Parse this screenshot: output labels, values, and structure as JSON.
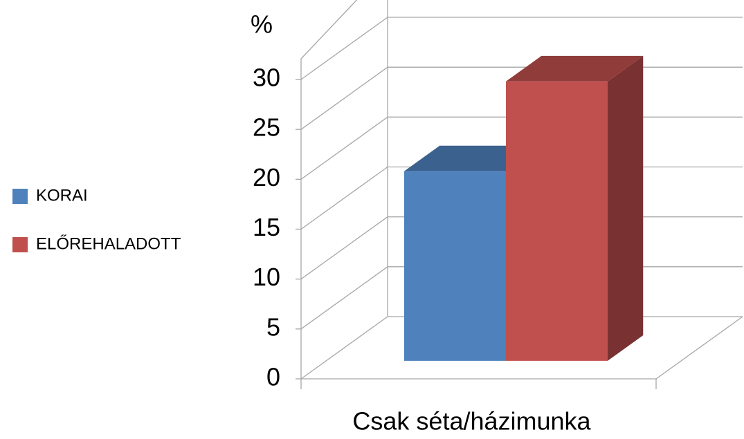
{
  "chart_data": {
    "type": "bar3d",
    "ylabel": "%",
    "categories": [
      "Csak séta/házimunka"
    ],
    "series": [
      {
        "name": "KORAI",
        "color": "#4f81bd",
        "values": [
          19
        ]
      },
      {
        "name": "ELŐREHALADOTT",
        "color": "#c0504d",
        "values": [
          28
        ]
      }
    ],
    "ylim": [
      0,
      30
    ],
    "yticks": [
      0,
      5,
      10,
      15,
      20,
      25,
      30
    ],
    "grid": true,
    "legend": "left"
  }
}
